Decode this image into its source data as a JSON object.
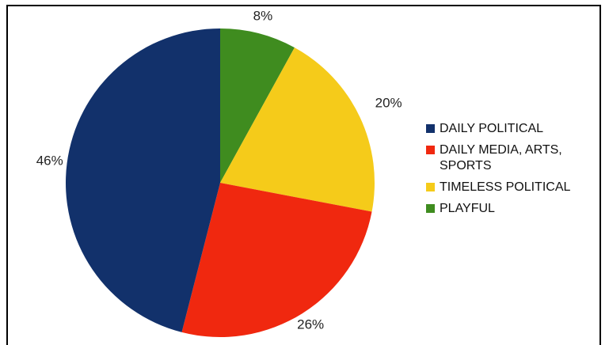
{
  "chart_data": {
    "type": "pie",
    "categories": [
      "DAILY POLITICAL",
      "DAILY MEDIA, ARTS, SPORTS",
      "TIMELESS POLITICAL",
      "PLAYFUL"
    ],
    "values": [
      46,
      26,
      20,
      8
    ],
    "data_labels": [
      "46%",
      "26%",
      "20%",
      "8%"
    ],
    "colors": [
      "#12316b",
      "#f0280f",
      "#f5cb1a",
      "#3f8c1f"
    ],
    "start_angle": "12 o'clock",
    "direction": "clockwise, starting with PLAYFUL",
    "legend_position": "right"
  }
}
